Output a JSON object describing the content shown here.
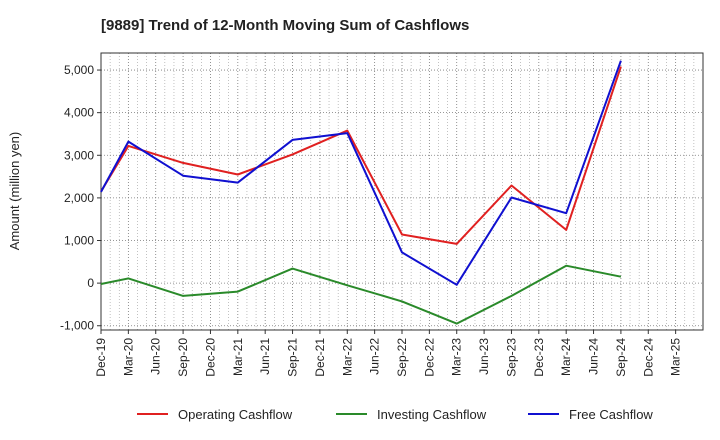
{
  "chart_data": {
    "type": "line",
    "title": "[9889]  Trend of 12-Month Moving Sum of Cashflows",
    "ylabel": "Amount (million yen)",
    "xlabel": "",
    "ylim": [
      -1100,
      5400
    ],
    "yticks": [
      -1000,
      0,
      1000,
      2000,
      3000,
      4000,
      5000
    ],
    "ytick_labels": [
      "-1,000",
      "0",
      "1,000",
      "2,000",
      "3,000",
      "4,000",
      "5,000"
    ],
    "x_tick_labels": [
      "Dec-19",
      "Mar-20",
      "Jun-20",
      "Sep-20",
      "Dec-20",
      "Mar-21",
      "Jun-21",
      "Sep-21",
      "Dec-21",
      "Mar-22",
      "Jun-22",
      "Sep-22",
      "Dec-22",
      "Mar-23",
      "Jun-23",
      "Sep-23",
      "Dec-23",
      "Mar-24",
      "Jun-24",
      "Sep-24",
      "Dec-24",
      "Mar-25"
    ],
    "x": [
      "Dec-19",
      "Mar-20",
      "Sep-20",
      "Mar-21",
      "Sep-21",
      "Mar-22",
      "Sep-22",
      "Mar-23",
      "Sep-23",
      "Mar-24",
      "Sep-24"
    ],
    "grid": true,
    "legend_position": "bottom",
    "series": [
      {
        "name": "Operating Cashflow",
        "color": "#e02020",
        "values": [
          2150,
          3220,
          2820,
          2550,
          3020,
          3580,
          1140,
          920,
          2290,
          1250,
          5080
        ]
      },
      {
        "name": "Investing Cashflow",
        "color": "#2a8a2a",
        "values": [
          -20,
          110,
          -300,
          -200,
          340,
          -50,
          -430,
          -950,
          -300,
          410,
          150
        ]
      },
      {
        "name": "Free Cashflow",
        "color": "#1010d0",
        "values": [
          2140,
          3320,
          2520,
          2360,
          3360,
          3520,
          720,
          -40,
          2010,
          1640,
          5220
        ]
      }
    ]
  }
}
